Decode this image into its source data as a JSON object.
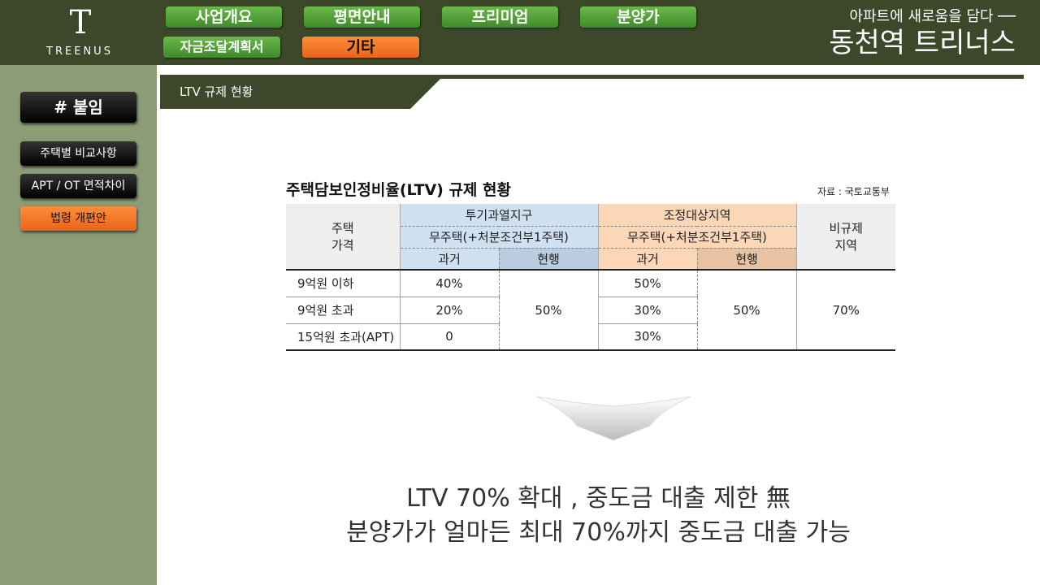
{
  "header": {
    "logo_text": "TREENUS",
    "nav": [
      "사업개요",
      "평면안내",
      "프리미엄",
      "분양가",
      "자금조달계획서",
      "기타"
    ],
    "active_nav": "기타",
    "slogan": "아파트에 새로움을 담다 ──",
    "project": "동천역 트리너스"
  },
  "sidebar": {
    "title": "# 붙임",
    "items": [
      "주택별 비교사항",
      "APT / OT 면적차이",
      "법령 개편안"
    ],
    "active": "법령 개편안"
  },
  "section_tab": "LTV 규제 현황",
  "table": {
    "title": "주택담보인정비율(LTV) 규제 현황",
    "source": "자료 : 국토교통부",
    "col_price": "주택\n가격",
    "group1": "투기과열지구",
    "group2": "조정대상지역",
    "sub": "무주택(+처분조건부1주택)",
    "past": "과거",
    "current": "현행",
    "nonreg": "비규제\n지역",
    "rows": [
      {
        "label": "9억원 이하",
        "g1_past": "40%",
        "g2_past": "50%"
      },
      {
        "label": "9억원 초과",
        "g1_past": "20%",
        "g2_past": "30%"
      },
      {
        "label": "15억원 초과(APT)",
        "g1_past": "0",
        "g2_past": "30%"
      }
    ],
    "g1_current": "50%",
    "g2_current": "50%",
    "nonreg_value": "70%"
  },
  "message": {
    "line1": "LTV 70% 확대 , 중도금 대출 제한 無",
    "line2": "분양가가 얼마든 최대 70%까지 중도금 대출 가능"
  },
  "colors": {
    "header": "#3c4829",
    "sidebar": "#8c9c76",
    "nav_green": "#5aa03a",
    "active_orange": "#f07a28"
  }
}
